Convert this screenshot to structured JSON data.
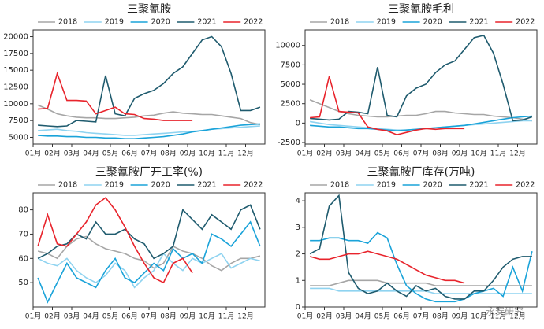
{
  "chart_data": [
    {
      "type": "line",
      "title": "三聚氰胺",
      "categories": [
        "01月",
        null,
        "02月",
        null,
        "03月",
        null,
        "04月",
        null,
        "05月",
        null,
        "06月",
        null,
        "07月",
        null,
        "08月",
        null,
        "09月",
        null,
        "10月",
        null,
        "11月",
        null,
        "12月",
        null
      ],
      "ylim": [
        4000,
        21000
      ],
      "yticks": [
        5000,
        7500,
        10000,
        12500,
        15000,
        17500,
        20000
      ],
      "series": [
        {
          "name": "2018",
          "color": "#a6a6a6",
          "values": [
            9800,
            9200,
            8500,
            8200,
            8000,
            7900,
            7900,
            7800,
            7800,
            7900,
            8000,
            8200,
            8300,
            8600,
            8800,
            8600,
            8500,
            8400,
            8400,
            8200,
            8000,
            7800,
            7200,
            6900
          ]
        },
        {
          "name": "2019",
          "color": "#8fd3f0",
          "values": [
            6000,
            6100,
            6200,
            6000,
            5900,
            5700,
            5600,
            5500,
            5400,
            5300,
            5300,
            5400,
            5500,
            5600,
            5700,
            5800,
            5900,
            6000,
            6200,
            6300,
            6400,
            6500,
            6600,
            6700
          ]
        },
        {
          "name": "2020",
          "color": "#1aa3d9",
          "values": [
            5300,
            5200,
            5200,
            5100,
            5100,
            5000,
            5000,
            4900,
            4900,
            4800,
            4800,
            4900,
            5000,
            5100,
            5300,
            5500,
            5800,
            6000,
            6200,
            6400,
            6600,
            6800,
            6900,
            7000
          ]
        },
        {
          "name": "2021",
          "color": "#1f5b6e",
          "values": [
            6800,
            6700,
            6600,
            6700,
            7500,
            7400,
            7300,
            14200,
            8500,
            8200,
            10800,
            11500,
            12000,
            13000,
            14500,
            15500,
            17500,
            19500,
            20000,
            18500,
            14500,
            9000,
            9000,
            9500
          ]
        },
        {
          "name": "2022",
          "color": "#e8242c",
          "values": [
            9200,
            9300,
            14500,
            10500,
            10500,
            10400,
            8500,
            9000,
            9500,
            8500,
            8400,
            7800,
            7700,
            7500,
            7500,
            7500,
            7500,
            null,
            null,
            null,
            null,
            null,
            null,
            null
          ]
        }
      ]
    },
    {
      "type": "line",
      "title": "三聚氰胺毛利",
      "categories": [
        "01月",
        null,
        "02月",
        null,
        "03月",
        null,
        "04月",
        null,
        "05月",
        null,
        "06月",
        null,
        "07月",
        null,
        "08月",
        null,
        "09月",
        null,
        "10月",
        null,
        "11月",
        null,
        "12月",
        null
      ],
      "ylim": [
        -2700,
        12000
      ],
      "yticks": [
        -2500,
        0,
        2500,
        5000,
        7500,
        10000
      ],
      "series": [
        {
          "name": "2018",
          "color": "#a6a6a6",
          "values": [
            3000,
            2500,
            2000,
            1500,
            1200,
            1000,
            900,
            800,
            800,
            900,
            1000,
            1000,
            1200,
            1500,
            1500,
            1300,
            1200,
            1100,
            1100,
            900,
            800,
            700,
            500,
            300
          ]
        },
        {
          "name": "2019",
          "color": "#8fd3f0",
          "values": [
            200,
            0,
            -200,
            -300,
            -400,
            -500,
            -600,
            -700,
            -800,
            -900,
            -900,
            -800,
            -700,
            -600,
            -500,
            -400,
            -300,
            -200,
            -100,
            0,
            100,
            200,
            300,
            300
          ]
        },
        {
          "name": "2020",
          "color": "#1aa3d9",
          "values": [
            -300,
            -400,
            -500,
            -500,
            -600,
            -700,
            -700,
            -800,
            -900,
            -1000,
            -900,
            -800,
            -700,
            -600,
            -500,
            -400,
            -300,
            -100,
            100,
            300,
            500,
            700,
            800,
            900
          ]
        },
        {
          "name": "2021",
          "color": "#1f5b6e",
          "values": [
            600,
            500,
            400,
            500,
            1500,
            1400,
            1200,
            7200,
            1000,
            800,
            3500,
            4500,
            5000,
            6500,
            7500,
            8000,
            9500,
            11000,
            11300,
            9000,
            5000,
            300,
            400,
            800
          ]
        },
        {
          "name": "2022",
          "color": "#e8242c",
          "values": [
            700,
            800,
            6000,
            1500,
            1400,
            1300,
            -500,
            -800,
            -1000,
            -1500,
            -1200,
            -900,
            -700,
            -800,
            -700,
            -700,
            -700,
            null,
            null,
            null,
            null,
            null,
            null,
            null
          ]
        }
      ]
    },
    {
      "type": "line",
      "title": "三聚氰胺厂开工率(%)",
      "categories": [
        "01月",
        null,
        "02月",
        null,
        "03月",
        null,
        "04月",
        null,
        "05月",
        null,
        "06月",
        null,
        "07月",
        null,
        "08月",
        null,
        "09月",
        null,
        "10月",
        null,
        "11月",
        null,
        "12月",
        null
      ],
      "ylim": [
        40,
        87
      ],
      "yticks": [
        50,
        60,
        70,
        80
      ],
      "series": [
        {
          "name": "2018",
          "color": "#a6a6a6",
          "values": [
            63,
            62,
            60,
            65,
            68,
            69,
            66,
            64,
            63,
            62,
            60,
            59,
            56,
            58,
            65,
            63,
            62,
            60,
            57,
            55,
            58,
            60,
            60,
            61
          ]
        },
        {
          "name": "2019",
          "color": "#8fd3f0",
          "values": [
            60,
            58,
            57,
            60,
            55,
            52,
            50,
            53,
            58,
            55,
            48,
            52,
            55,
            62,
            58,
            55,
            60,
            58,
            60,
            62,
            56,
            58,
            60,
            59
          ]
        },
        {
          "name": "2020",
          "color": "#1aa3d9",
          "values": [
            52,
            42,
            50,
            58,
            52,
            50,
            48,
            55,
            60,
            52,
            50,
            54,
            58,
            55,
            64,
            60,
            62,
            58,
            70,
            68,
            65,
            70,
            75,
            65
          ]
        },
        {
          "name": "2021",
          "color": "#1f5b6e",
          "values": [
            60,
            62,
            65,
            66,
            70,
            68,
            75,
            70,
            70,
            72,
            68,
            66,
            60,
            62,
            65,
            80,
            76,
            72,
            78,
            75,
            72,
            80,
            82,
            72
          ]
        },
        {
          "name": "2022",
          "color": "#e8242c",
          "values": [
            65,
            78,
            66,
            65,
            70,
            75,
            82,
            85,
            80,
            73,
            65,
            58,
            52,
            50,
            58,
            60,
            54,
            null,
            null,
            null,
            null,
            null,
            null,
            null
          ]
        }
      ]
    },
    {
      "type": "line",
      "title": "三聚氰胺厂库存(万吨)",
      "categories": [
        "01月",
        null,
        "02月",
        null,
        "03月",
        null,
        "04月",
        null,
        "05月",
        null,
        "06月",
        null,
        "07月",
        null,
        "08月",
        null,
        "09月",
        null,
        "10月",
        null,
        "11月",
        null,
        "12月",
        null
      ],
      "ylim": [
        0,
        4.3
      ],
      "yticks": [
        0,
        1,
        2,
        3,
        4
      ],
      "series": [
        {
          "name": "2018",
          "color": "#a6a6a6",
          "values": [
            0.8,
            0.8,
            0.8,
            0.9,
            1.0,
            1.0,
            1.0,
            1.0,
            0.9,
            0.9,
            0.9,
            0.9,
            0.9,
            0.8,
            0.8,
            0.8,
            0.8,
            0.8,
            0.8,
            0.8,
            0.8,
            0.8,
            0.8,
            0.8
          ]
        },
        {
          "name": "2019",
          "color": "#8fd3f0",
          "values": [
            0.7,
            0.7,
            0.7,
            0.6,
            0.6,
            0.6,
            0.6,
            0.6,
            0.6,
            0.6,
            0.6,
            0.6,
            0.6,
            0.5,
            0.5,
            0.5,
            0.5,
            0.5,
            0.5,
            0.5,
            0.5,
            0.5,
            0.5,
            0.5
          ]
        },
        {
          "name": "2020",
          "color": "#1aa3d9",
          "values": [
            2.5,
            2.5,
            2.6,
            2.6,
            2.5,
            2.5,
            2.4,
            2.8,
            2.6,
            1.6,
            0.8,
            0.5,
            0.3,
            0.2,
            0.2,
            0.2,
            0.3,
            0.5,
            0.6,
            0.7,
            0.4,
            1.5,
            0.6,
            2.1
          ]
        },
        {
          "name": "2021",
          "color": "#1f5b6e",
          "values": [
            2.0,
            2.2,
            3.8,
            4.2,
            1.3,
            0.7,
            0.5,
            0.6,
            0.9,
            0.6,
            0.4,
            0.8,
            0.6,
            0.7,
            0.4,
            0.3,
            0.3,
            0.6,
            0.6,
            1.0,
            1.5,
            1.8,
            1.9,
            1.9
          ]
        },
        {
          "name": "2022",
          "color": "#e8242c",
          "values": [
            1.9,
            1.8,
            1.8,
            1.9,
            2.0,
            2.0,
            2.1,
            2.0,
            1.9,
            1.8,
            1.6,
            1.4,
            1.2,
            1.1,
            1.0,
            1.0,
            0.9,
            null,
            null,
            null,
            null,
            null,
            null,
            null
          ]
        }
      ]
    }
  ],
  "watermark": "永安研究"
}
